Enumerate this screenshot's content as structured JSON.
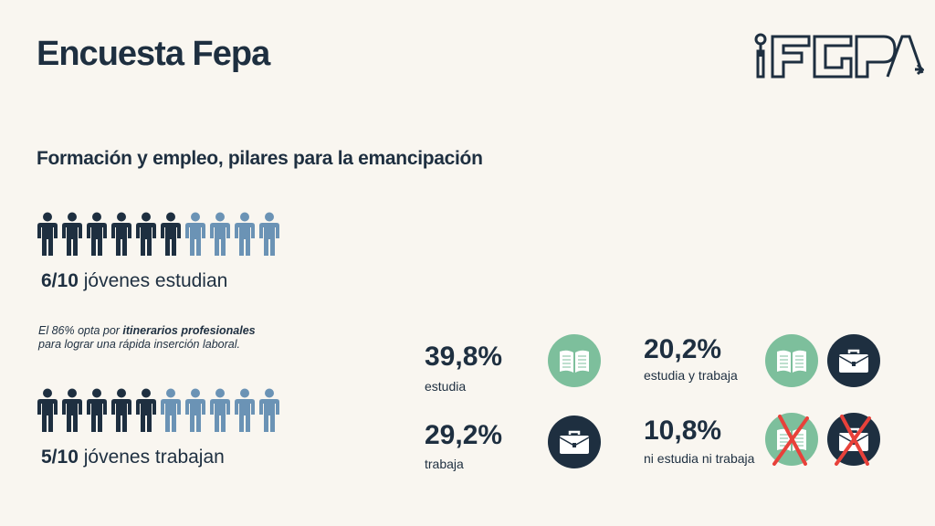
{
  "header": {
    "title": "Encuesta Fepa",
    "logo_text": "iFEPA"
  },
  "subtitle": "Formación y empleo, pilares para la emancipación",
  "study": {
    "ratio": "6/10",
    "text": "jóvenes estudian",
    "filled": 6,
    "total": 10
  },
  "work": {
    "ratio": "5/10",
    "text": "jóvenes trabajan",
    "filled": 5,
    "total": 10
  },
  "note": {
    "prefix": "El 86% opta por ",
    "bold": "itinerarios profesionales",
    "suffix": "para lograr una rápida inserción laboral."
  },
  "stats": [
    {
      "pct": "39,8%",
      "label": "estudia"
    },
    {
      "pct": "29,2%",
      "label": "trabaja"
    },
    {
      "pct": "20,2%",
      "label": "estudia y trabaja"
    },
    {
      "pct": "10,8%",
      "label": "ni estudia ni trabaja"
    }
  ],
  "colors": {
    "dark": "#1e2f40",
    "light": "#6b93b5",
    "green": "#7dbf9c",
    "red": "#e8413a"
  }
}
